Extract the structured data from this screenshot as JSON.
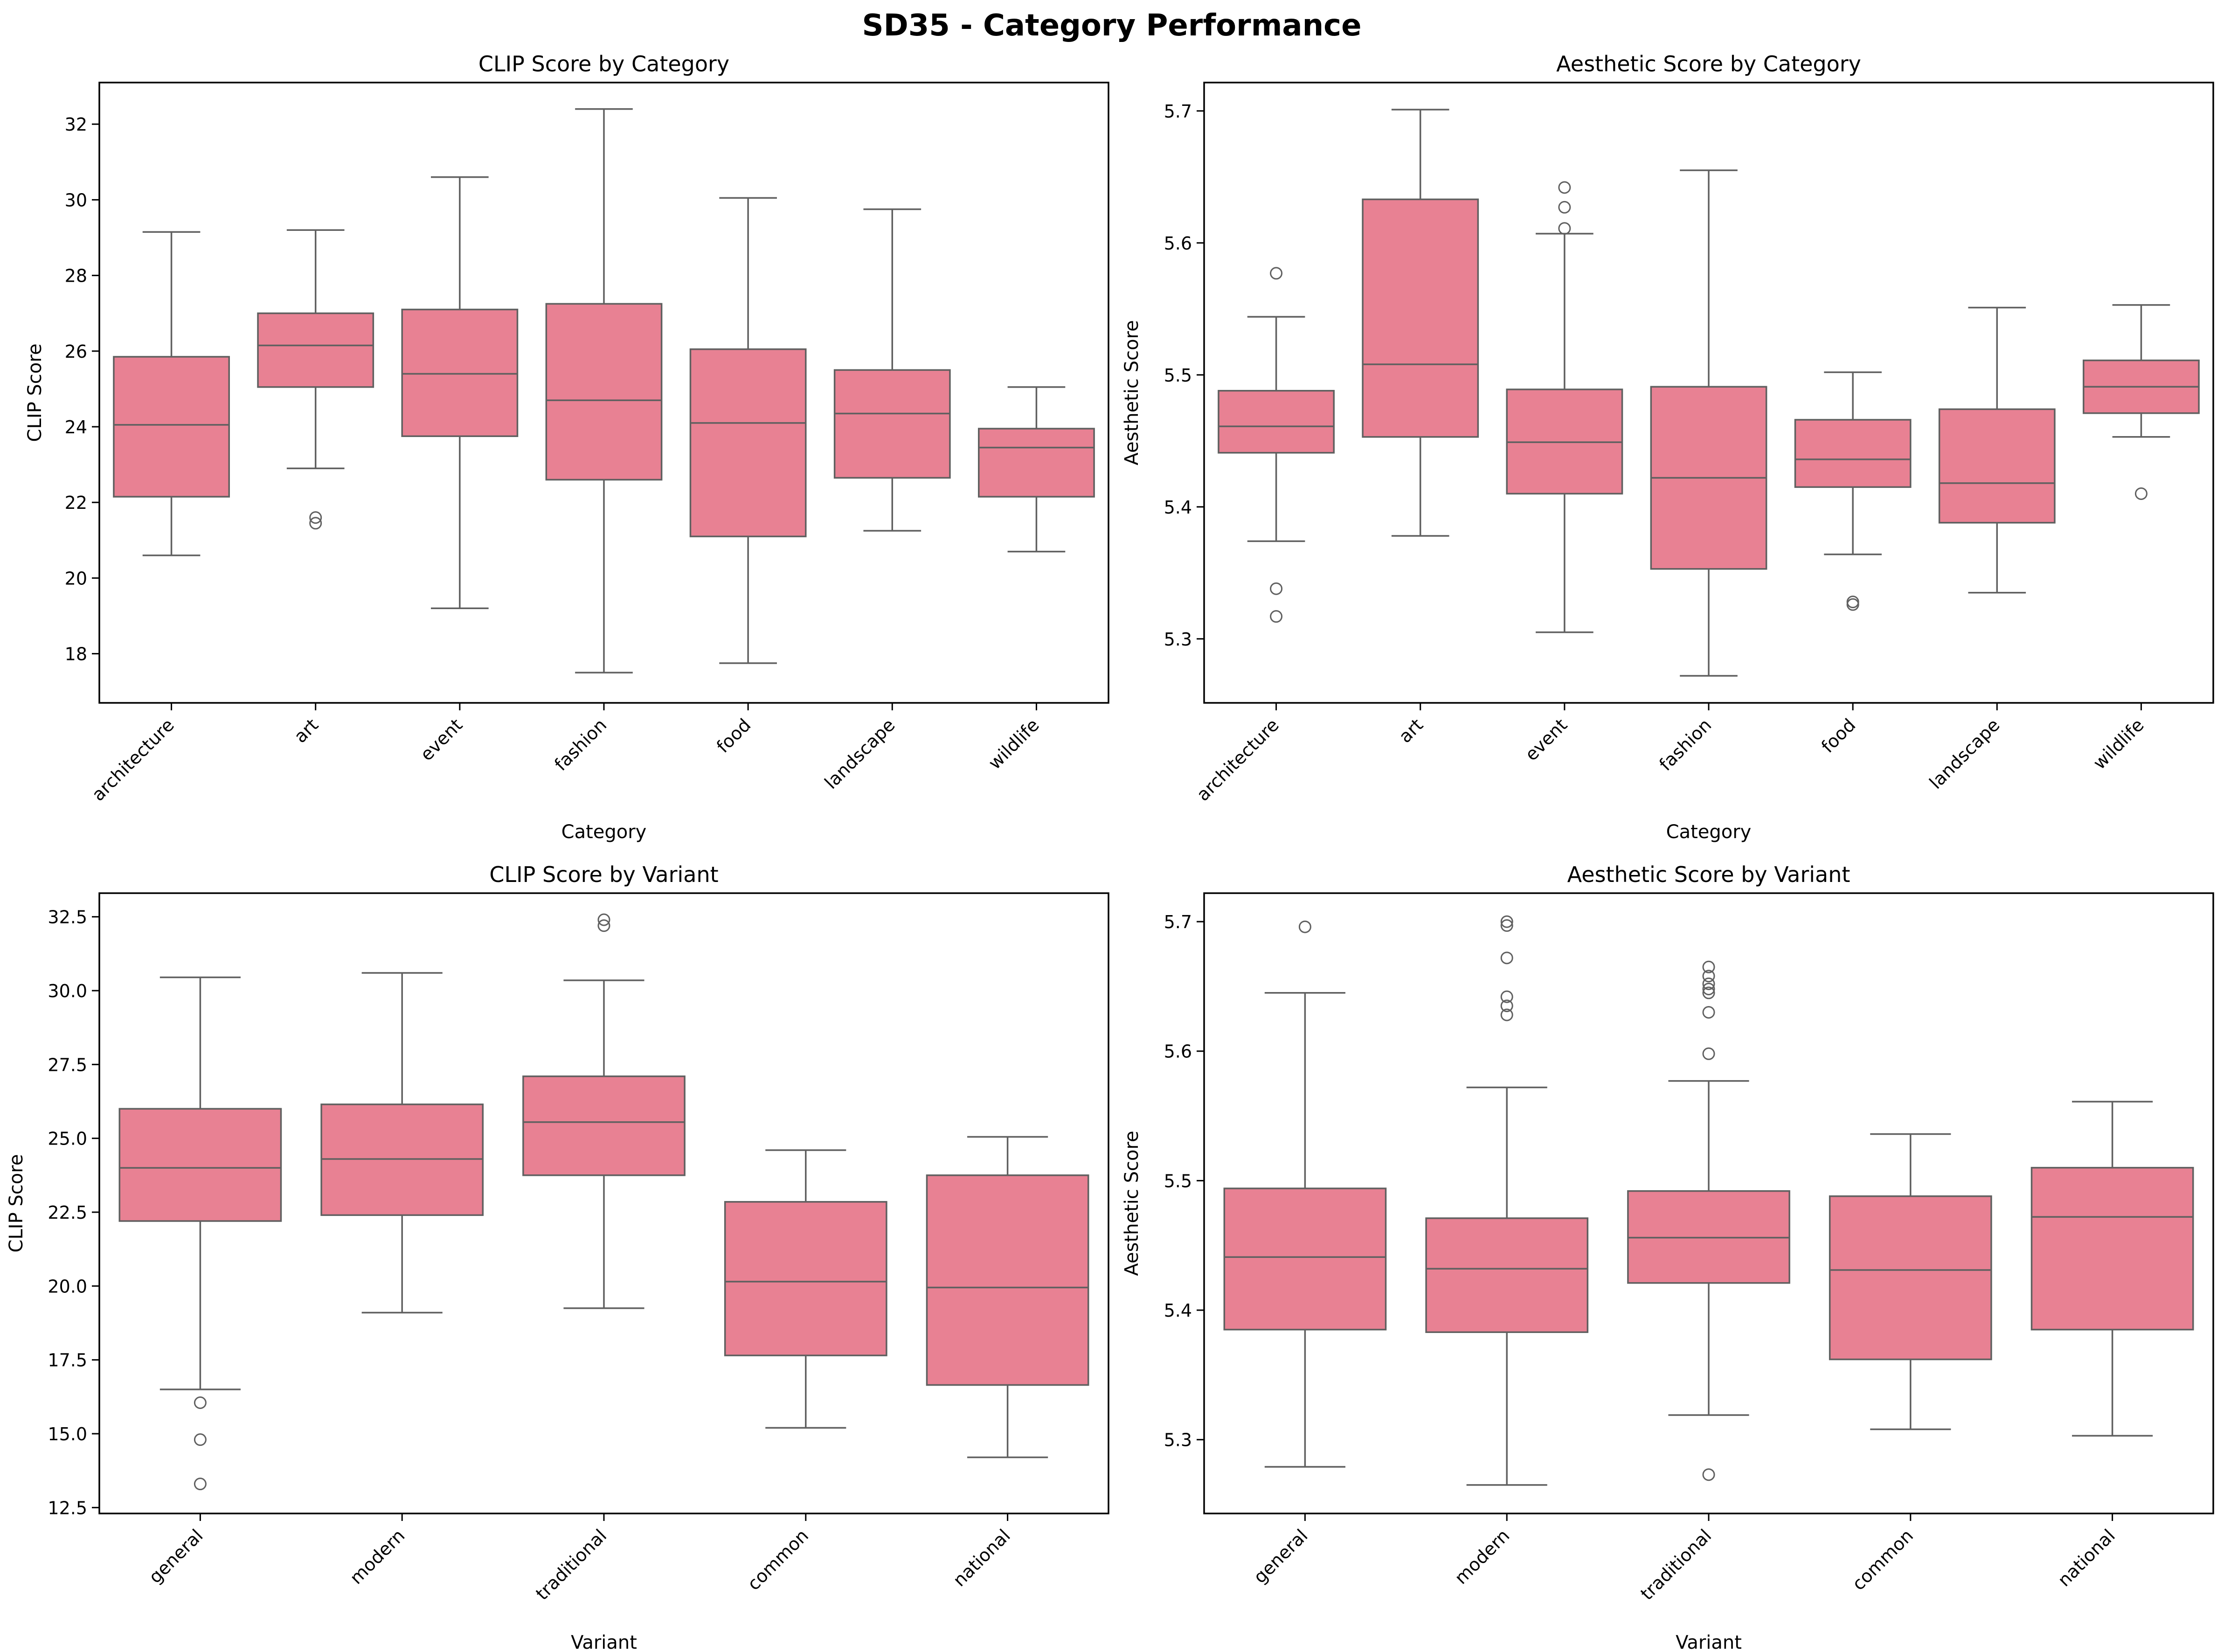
{
  "figure_title": "SD35 - Category Performance",
  "colors": {
    "box_fill": "#e88193",
    "box_edge": "#606060",
    "axis": "#000000",
    "background": "#ffffff"
  },
  "chart_data": [
    {
      "type": "box",
      "title": "CLIP Score by Category",
      "xlabel": "Category",
      "ylabel": "CLIP Score",
      "ylim": [
        16.7,
        33.1
      ],
      "yticks": [
        18,
        20,
        22,
        24,
        26,
        28,
        30,
        32
      ],
      "ytick_labels": [
        "18",
        "20",
        "22",
        "24",
        "26",
        "28",
        "30",
        "32"
      ],
      "categories": [
        "architecture",
        "art",
        "event",
        "fashion",
        "food",
        "landscape",
        "wildlife"
      ],
      "boxes": [
        {
          "category": "architecture",
          "whisker_low": 20.6,
          "q1": 22.15,
          "median": 24.05,
          "q3": 25.85,
          "whisker_high": 29.15,
          "outliers": []
        },
        {
          "category": "art",
          "whisker_low": 22.9,
          "q1": 25.05,
          "median": 26.15,
          "q3": 27.0,
          "whisker_high": 29.2,
          "outliers": [
            21.6,
            21.45
          ]
        },
        {
          "category": "event",
          "whisker_low": 19.2,
          "q1": 23.75,
          "median": 25.4,
          "q3": 27.1,
          "whisker_high": 30.6,
          "outliers": []
        },
        {
          "category": "fashion",
          "whisker_low": 17.5,
          "q1": 22.6,
          "median": 24.7,
          "q3": 27.25,
          "whisker_high": 32.4,
          "outliers": []
        },
        {
          "category": "food",
          "whisker_low": 17.75,
          "q1": 21.1,
          "median": 24.1,
          "q3": 26.05,
          "whisker_high": 30.05,
          "outliers": []
        },
        {
          "category": "landscape",
          "whisker_low": 21.25,
          "q1": 22.65,
          "median": 24.35,
          "q3": 25.5,
          "whisker_high": 29.75,
          "outliers": []
        },
        {
          "category": "wildlife",
          "whisker_low": 20.7,
          "q1": 22.15,
          "median": 23.45,
          "q3": 23.95,
          "whisker_high": 25.05,
          "outliers": []
        }
      ]
    },
    {
      "type": "box",
      "title": "Aesthetic Score by Category",
      "xlabel": "Category",
      "ylabel": "Aesthetic Score",
      "ylim": [
        5.2515,
        5.7215
      ],
      "yticks": [
        5.3,
        5.4,
        5.5,
        5.6,
        5.7
      ],
      "ytick_labels": [
        "5.3",
        "5.4",
        "5.5",
        "5.6",
        "5.7"
      ],
      "categories": [
        "architecture",
        "art",
        "event",
        "fashion",
        "food",
        "landscape",
        "wildlife"
      ],
      "boxes": [
        {
          "category": "architecture",
          "whisker_low": 5.374,
          "q1": 5.441,
          "median": 5.461,
          "q3": 5.488,
          "whisker_high": 5.544,
          "outliers": [
            5.577,
            5.338,
            5.317
          ]
        },
        {
          "category": "art",
          "whisker_low": 5.378,
          "q1": 5.453,
          "median": 5.508,
          "q3": 5.633,
          "whisker_high": 5.701,
          "outliers": []
        },
        {
          "category": "event",
          "whisker_low": 5.305,
          "q1": 5.41,
          "median": 5.449,
          "q3": 5.489,
          "whisker_high": 5.607,
          "outliers": [
            5.642,
            5.627,
            5.611
          ]
        },
        {
          "category": "fashion",
          "whisker_low": 5.272,
          "q1": 5.353,
          "median": 5.422,
          "q3": 5.491,
          "whisker_high": 5.655,
          "outliers": []
        },
        {
          "category": "food",
          "whisker_low": 5.364,
          "q1": 5.415,
          "median": 5.436,
          "q3": 5.466,
          "whisker_high": 5.502,
          "outliers": [
            5.328,
            5.326
          ]
        },
        {
          "category": "landscape",
          "whisker_low": 5.335,
          "q1": 5.388,
          "median": 5.418,
          "q3": 5.474,
          "whisker_high": 5.551,
          "outliers": []
        },
        {
          "category": "wildlife",
          "whisker_low": 5.453,
          "q1": 5.471,
          "median": 5.491,
          "q3": 5.511,
          "whisker_high": 5.553,
          "outliers": [
            5.41
          ]
        }
      ]
    },
    {
      "type": "box",
      "title": "CLIP Score by Variant",
      "xlabel": "Variant",
      "ylabel": "CLIP Score",
      "ylim": [
        12.3,
        33.3
      ],
      "yticks": [
        12.5,
        15.0,
        17.5,
        20.0,
        22.5,
        25.0,
        27.5,
        30.0,
        32.5
      ],
      "ytick_labels": [
        "12.5",
        "15.0",
        "17.5",
        "20.0",
        "22.5",
        "25.0",
        "27.5",
        "30.0",
        "32.5"
      ],
      "categories": [
        "general",
        "modern",
        "traditional",
        "common",
        "national"
      ],
      "boxes": [
        {
          "category": "general",
          "whisker_low": 16.5,
          "q1": 22.2,
          "median": 24.0,
          "q3": 26.0,
          "whisker_high": 30.45,
          "outliers": [
            16.05,
            14.8,
            13.3
          ]
        },
        {
          "category": "modern",
          "whisker_low": 19.1,
          "q1": 22.4,
          "median": 24.3,
          "q3": 26.15,
          "whisker_high": 30.6,
          "outliers": []
        },
        {
          "category": "traditional",
          "whisker_low": 19.25,
          "q1": 23.75,
          "median": 25.55,
          "q3": 27.1,
          "whisker_high": 30.35,
          "outliers": [
            32.4,
            32.2
          ]
        },
        {
          "category": "common",
          "whisker_low": 15.2,
          "q1": 17.65,
          "median": 20.15,
          "q3": 22.85,
          "whisker_high": 24.6,
          "outliers": []
        },
        {
          "category": "national",
          "whisker_low": 14.2,
          "q1": 16.65,
          "median": 19.95,
          "q3": 23.75,
          "whisker_high": 25.05,
          "outliers": []
        }
      ]
    },
    {
      "type": "box",
      "title": "Aesthetic Score by Variant",
      "xlabel": "Variant",
      "ylabel": "Aesthetic Score",
      "ylim": [
        5.243,
        5.722
      ],
      "yticks": [
        5.3,
        5.4,
        5.5,
        5.6,
        5.7
      ],
      "ytick_labels": [
        "5.3",
        "5.4",
        "5.5",
        "5.6",
        "5.7"
      ],
      "categories": [
        "general",
        "modern",
        "traditional",
        "common",
        "national"
      ],
      "boxes": [
        {
          "category": "general",
          "whisker_low": 5.279,
          "q1": 5.385,
          "median": 5.441,
          "q3": 5.494,
          "whisker_high": 5.645,
          "outliers": [
            5.696
          ]
        },
        {
          "category": "modern",
          "whisker_low": 5.265,
          "q1": 5.383,
          "median": 5.432,
          "q3": 5.471,
          "whisker_high": 5.572,
          "outliers": [
            5.7,
            5.697,
            5.672,
            5.642,
            5.635,
            5.628
          ]
        },
        {
          "category": "traditional",
          "whisker_low": 5.319,
          "q1": 5.421,
          "median": 5.456,
          "q3": 5.492,
          "whisker_high": 5.577,
          "outliers": [
            5.665,
            5.658,
            5.652,
            5.648,
            5.645,
            5.63,
            5.598,
            5.273
          ]
        },
        {
          "category": "common",
          "whisker_low": 5.308,
          "q1": 5.362,
          "median": 5.431,
          "q3": 5.488,
          "whisker_high": 5.536,
          "outliers": []
        },
        {
          "category": "national",
          "whisker_low": 5.303,
          "q1": 5.385,
          "median": 5.472,
          "q3": 5.51,
          "whisker_high": 5.561,
          "outliers": []
        }
      ]
    }
  ]
}
